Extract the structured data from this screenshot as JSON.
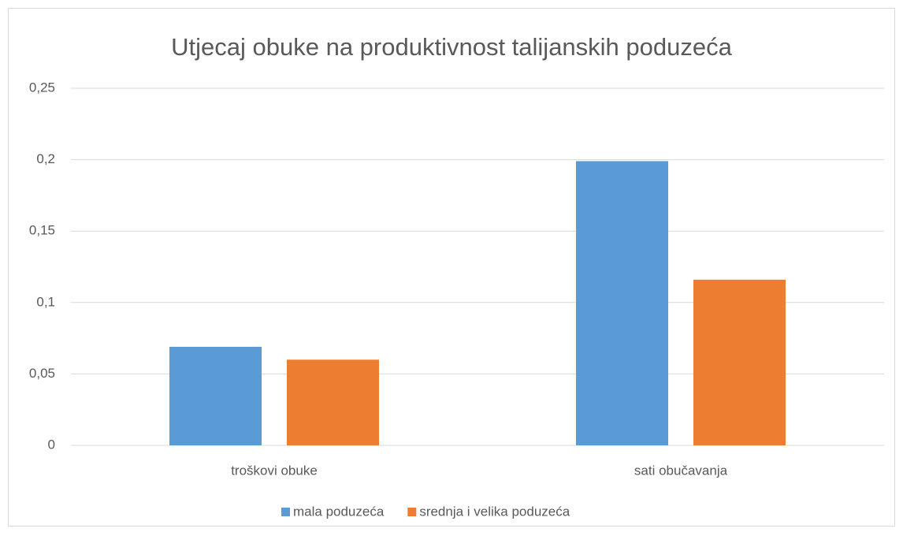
{
  "chart_data": {
    "type": "bar",
    "title": "Utjecaj obuke na produktivnost talijanskih poduzeća",
    "categories": [
      "troškovi obuke",
      "sati obučavanja"
    ],
    "series": [
      {
        "name": "mala poduzeća",
        "color": "#5b9bd5",
        "values": [
          0.069,
          0.199
        ]
      },
      {
        "name": "srednja i velika poduzeća",
        "color": "#ed7d31",
        "values": [
          0.06,
          0.116
        ]
      }
    ],
    "ylim": [
      0,
      0.25
    ],
    "yticks": [
      0,
      {
        "value": 0.05,
        "label": "0,05"
      },
      {
        "value": 0.1,
        "label": "0,1"
      },
      {
        "value": 0.15,
        "label": "0,15"
      },
      {
        "value": 0.2,
        "label": "0,2"
      },
      {
        "value": 0.25,
        "label": "0,25"
      }
    ],
    "grid": true,
    "legend": "bottom"
  }
}
